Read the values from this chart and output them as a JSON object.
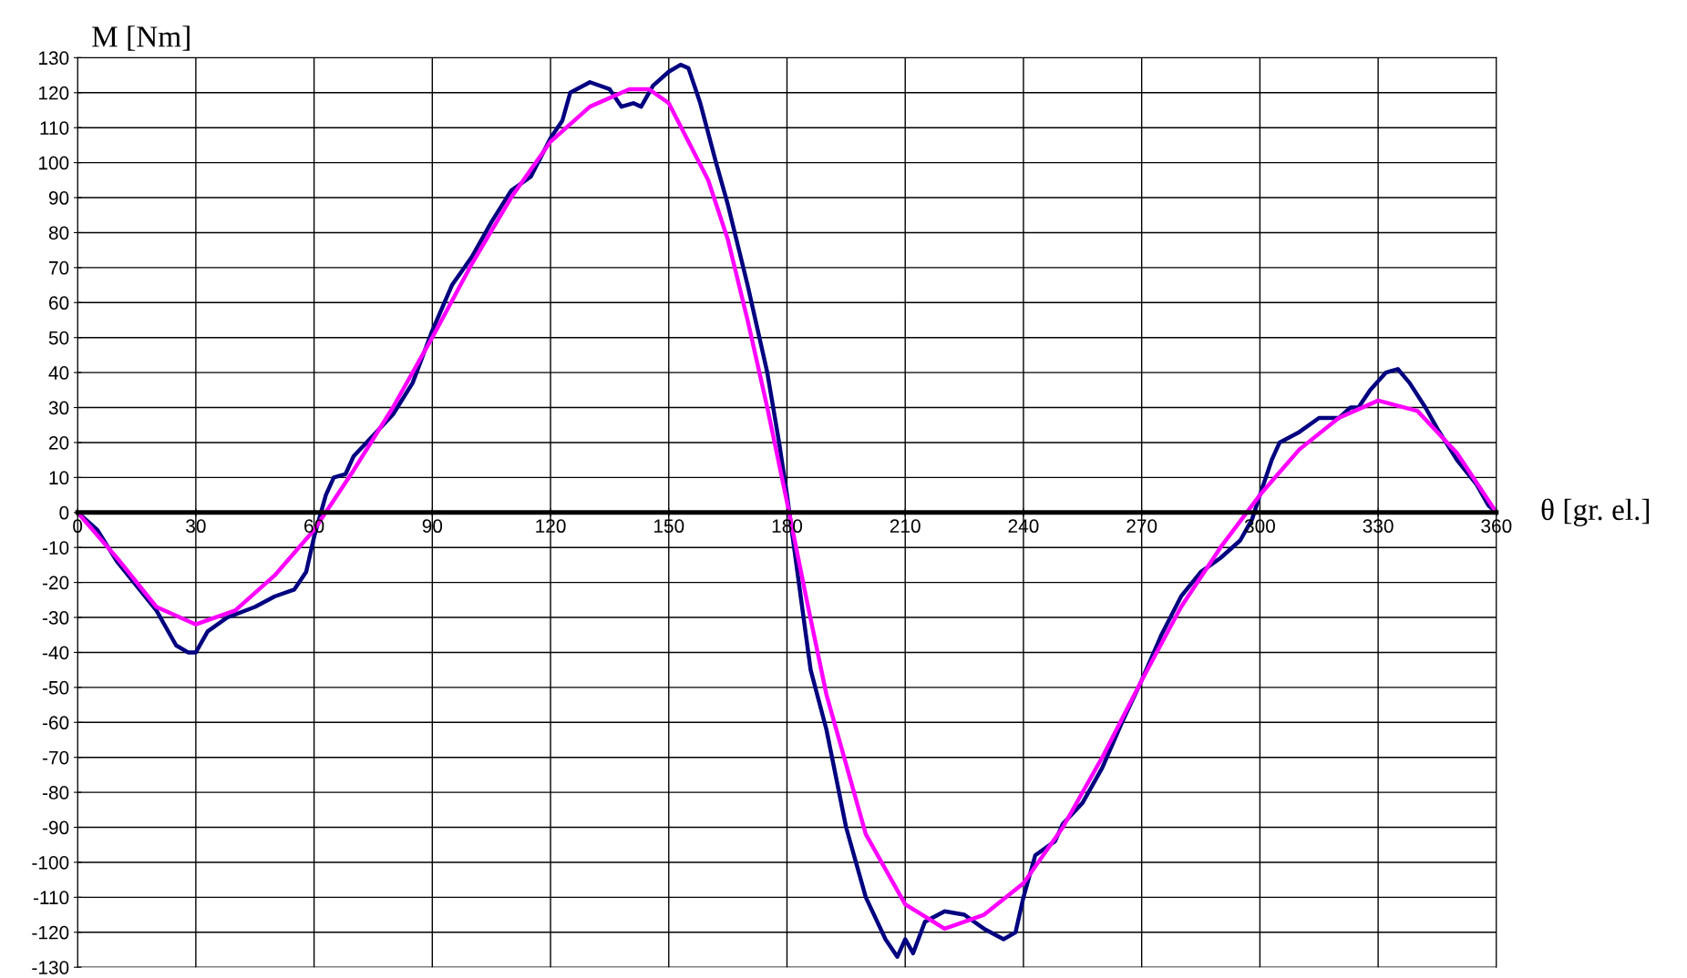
{
  "chart_data": {
    "type": "line",
    "xlabel": "θ [gr. el.]",
    "ylabel": "M [Nm]",
    "xlim": [
      0,
      360
    ],
    "xticks": [
      0,
      30,
      60,
      90,
      120,
      150,
      180,
      210,
      240,
      270,
      300,
      330,
      360
    ],
    "ylim": [
      -130,
      130
    ],
    "yticks": [
      -130,
      -120,
      -110,
      -100,
      -90,
      -80,
      -70,
      -60,
      -50,
      -40,
      -30,
      -20,
      -10,
      0,
      10,
      20,
      30,
      40,
      50,
      60,
      70,
      80,
      90,
      100,
      110,
      120,
      130
    ],
    "grid": true,
    "legend": false,
    "marker": "none",
    "line_style": "solid",
    "series": [
      {
        "color": "#000080",
        "x": [
          0,
          5,
          10,
          20,
          25,
          28,
          30,
          33,
          38,
          45,
          50,
          55,
          58,
          60,
          63,
          65,
          68,
          70,
          75,
          80,
          85,
          90,
          95,
          100,
          105,
          110,
          115,
          120,
          123,
          125,
          130,
          135,
          138,
          141,
          143,
          146,
          150,
          153,
          155,
          158,
          162,
          165,
          170,
          175,
          178,
          180,
          183,
          186,
          190,
          195,
          200,
          205,
          208,
          210,
          212,
          215,
          220,
          225,
          230,
          235,
          238,
          240,
          243,
          248,
          250,
          255,
          260,
          265,
          270,
          275,
          280,
          285,
          290,
          295,
          298,
          300,
          303,
          305,
          310,
          315,
          320,
          323,
          325,
          328,
          332,
          335,
          338,
          342,
          345,
          350,
          355,
          358,
          360
        ],
        "values": [
          0,
          -5,
          -14,
          -28,
          -38,
          -40,
          -40,
          -34,
          -30,
          -27,
          -24,
          -22,
          -17,
          -7,
          5,
          10,
          11,
          16,
          22,
          28,
          37,
          52,
          65,
          73,
          83,
          92,
          96,
          107,
          112,
          120,
          123,
          121,
          116,
          117,
          116,
          122,
          126,
          128,
          127,
          117,
          100,
          88,
          65,
          40,
          20,
          5,
          -20,
          -45,
          -62,
          -90,
          -110,
          -122,
          -127,
          -122,
          -126,
          -117,
          -114,
          -115,
          -119,
          -122,
          -120,
          -110,
          -98,
          -94,
          -89,
          -83,
          -73,
          -60,
          -48,
          -35,
          -24,
          -17,
          -13,
          -8,
          -2,
          5,
          15,
          20,
          23,
          27,
          27,
          30,
          30,
          35,
          40,
          41,
          37,
          30,
          24,
          15,
          8,
          2,
          0
        ]
      },
      {
        "color": "#ff00ff",
        "x": [
          0,
          10,
          20,
          30,
          40,
          50,
          60,
          70,
          80,
          90,
          100,
          110,
          120,
          130,
          140,
          145,
          150,
          160,
          165,
          170,
          175,
          180,
          185,
          190,
          200,
          210,
          220,
          230,
          240,
          250,
          260,
          270,
          280,
          290,
          300,
          310,
          320,
          330,
          340,
          350,
          360
        ],
        "values": [
          0,
          -13,
          -27,
          -32,
          -28,
          -18,
          -5,
          12,
          30,
          50,
          71,
          90,
          106,
          116,
          121,
          121,
          117,
          95,
          78,
          55,
          30,
          3,
          -25,
          -52,
          -92,
          -112,
          -119,
          -115,
          -106,
          -90,
          -70,
          -48,
          -27,
          -10,
          5,
          18,
          27,
          32,
          29,
          17,
          0
        ]
      }
    ]
  }
}
